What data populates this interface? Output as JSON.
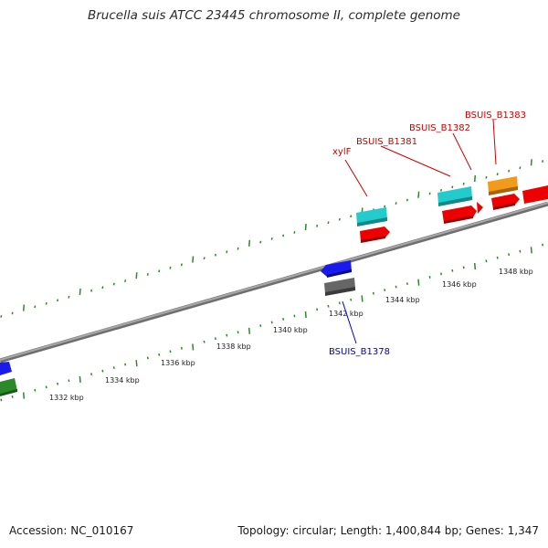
{
  "title": "Brucella suis ATCC 23445 chromosome II, complete genome",
  "footer": {
    "accession": "Accession: NC_010167",
    "summary": "Topology: circular; Length: 1,400,844 bp; Genes: 1,347"
  },
  "scale": {
    "labels": [
      "1332 kbp",
      "1334 kbp",
      "1336 kbp",
      "1338 kbp",
      "1340 kbp",
      "1342 kbp",
      "1344 kbp",
      "1346 kbp",
      "1348 kbp"
    ]
  },
  "colors": {
    "backbone": "#8a8a8a",
    "ticks": "#2a8a2a",
    "forward_label": "#cc0000",
    "reverse_label": "#0000cc",
    "cds_forward": "#ee0000",
    "cds_reverse": "#1a1aee",
    "rna_cyan": "#22cccc",
    "gray_feature": "#666666",
    "orange_feature": "#f29a1a",
    "green_feature": "#2a8a2a"
  },
  "gene_labels": [
    {
      "text": "xylF",
      "strand": "forward"
    },
    {
      "text": "BSUIS_B1381",
      "strand": "forward"
    },
    {
      "text": "BSUIS_B1382",
      "strand": "forward"
    },
    {
      "text": "BSUIS_B1383",
      "strand": "forward"
    },
    {
      "text": "BSUIS_B1378",
      "strand": "reverse"
    }
  ]
}
